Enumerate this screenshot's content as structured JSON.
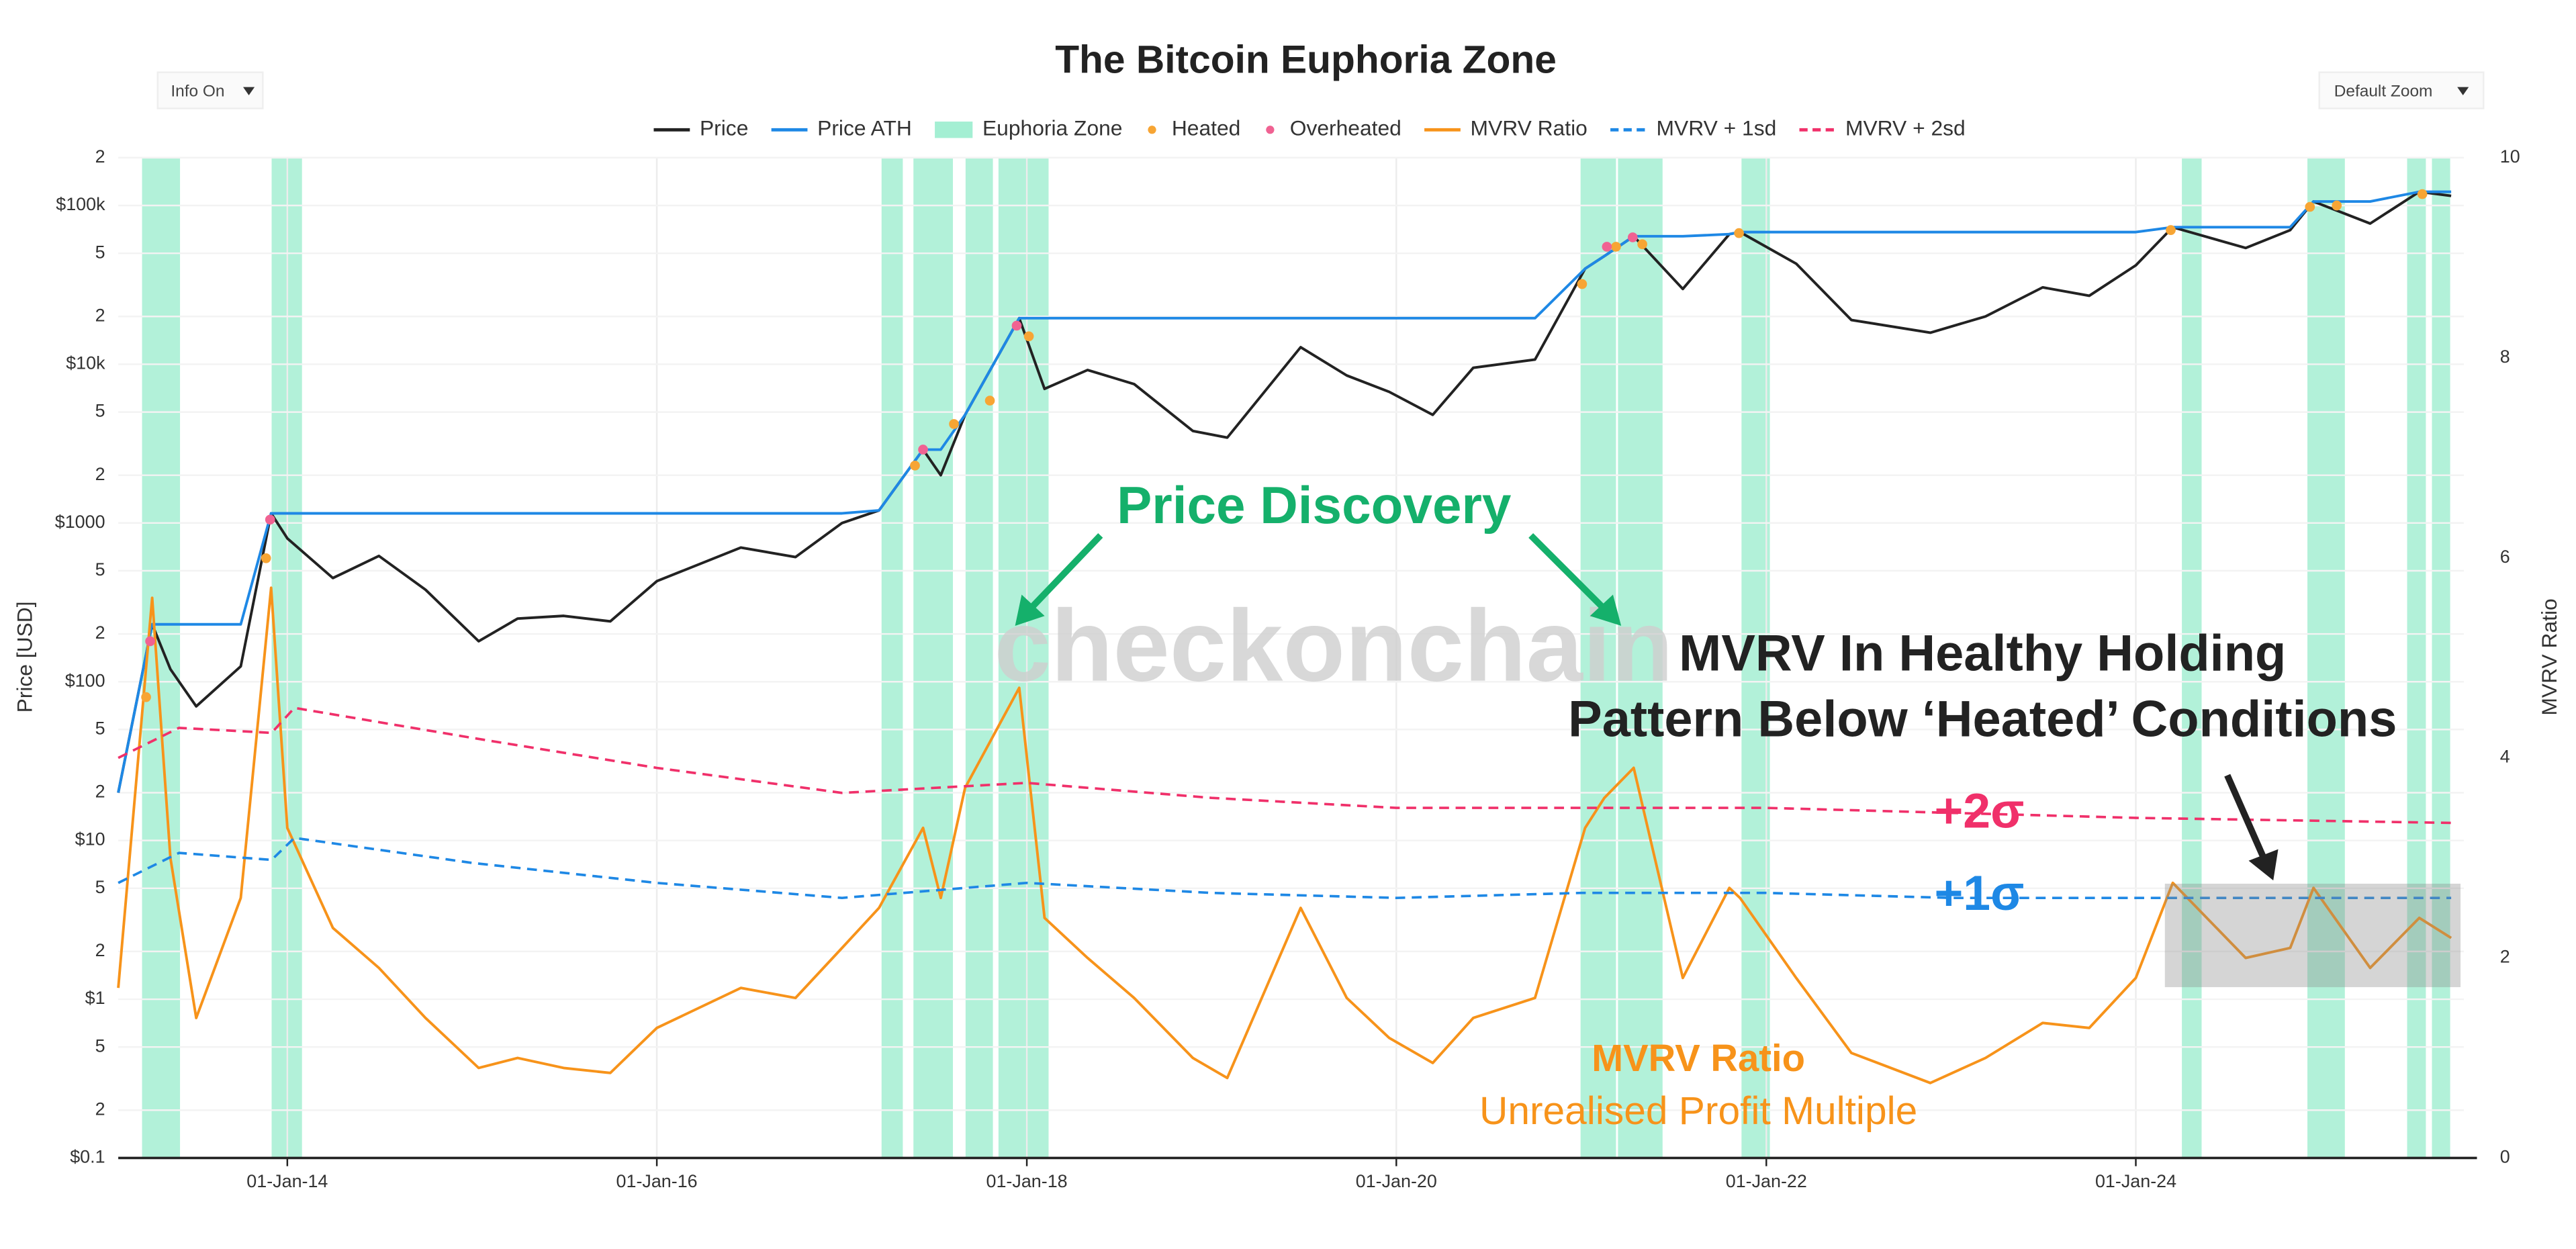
{
  "chart_data": {
    "type": "line",
    "title": "The Bitcoin Euphoria Zone",
    "controls": {
      "left": "Info On",
      "right": "Default Zoom"
    },
    "y_label": "Price [USD]",
    "y2_label": "MVRV Ratio",
    "legend_position": "top",
    "grid": true,
    "log_y": true,
    "xlim": [
      "2013-02-01",
      "2025-10-10"
    ],
    "xticks": [
      {
        "value": "2014-01-01",
        "label": "01-Jan-14"
      },
      {
        "value": "2016-01-01",
        "label": "01-Jan-16"
      },
      {
        "value": "2018-01-01",
        "label": "01-Jan-18"
      },
      {
        "value": "2020-01-01",
        "label": "01-Jan-20"
      },
      {
        "value": "2022-01-01",
        "label": "01-Jan-22"
      },
      {
        "value": "2024-01-01",
        "label": "01-Jan-24"
      }
    ],
    "ylim": [
      0.1,
      200000
    ],
    "yticks": [
      {
        "value": 0.1,
        "label": "$0.1"
      },
      {
        "value": 0.2,
        "label": "2"
      },
      {
        "value": 0.5,
        "label": "5"
      },
      {
        "value": 1,
        "label": "$1"
      },
      2,
      5,
      {
        "value": 10,
        "label": "$10"
      },
      {
        "value": 20,
        "label": "2"
      },
      {
        "value": 50,
        "label": "5"
      },
      {
        "value": 100,
        "label": "$100"
      },
      {
        "value": 200,
        "label": "2"
      },
      {
        "value": 500,
        "label": "5"
      },
      {
        "value": 1000,
        "label": "$1000"
      },
      {
        "value": 2000,
        "label": "2"
      },
      {
        "value": 5000,
        "label": "5"
      },
      {
        "value": 10000,
        "label": "$10k"
      },
      {
        "value": 20000,
        "label": "2"
      },
      {
        "value": 50000,
        "label": "5"
      },
      {
        "value": 100000,
        "label": "$100k"
      },
      {
        "value": 200000,
        "label": "2"
      }
    ],
    "y2lim": [
      0,
      10
    ],
    "y2ticks": [
      0,
      2,
      4,
      6,
      8,
      10
    ],
    "x": [
      "2013-02-01",
      "2013-04-09",
      "2013-05-15",
      "2013-07-05",
      "2013-10-01",
      "2013-11-30",
      "2014-01-01",
      "2014-04-01",
      "2014-07-01",
      "2014-10-01",
      "2015-01-14",
      "2015-04-01",
      "2015-07-01",
      "2015-10-01",
      "2016-01-01",
      "2016-06-15",
      "2016-10-01",
      "2017-01-01",
      "2017-03-15",
      "2017-06-10",
      "2017-07-15",
      "2017-09-01",
      "2017-12-17",
      "2018-02-05",
      "2018-05-01",
      "2018-08-01",
      "2018-11-25",
      "2019-02-01",
      "2019-06-26",
      "2019-09-25",
      "2019-12-18",
      "2020-03-13",
      "2020-06-01",
      "2020-10-01",
      "2021-01-08",
      "2021-02-15",
      "2021-04-14",
      "2021-07-20",
      "2021-10-20",
      "2021-11-10",
      "2022-03-01",
      "2022-06-18",
      "2022-11-21",
      "2023-03-10",
      "2023-07-01",
      "2023-10-01",
      "2024-01-01",
      "2024-03-14",
      "2024-08-05",
      "2024-11-01",
      "2024-12-17",
      "2025-04-08",
      "2025-07-14",
      "2025-09-15"
    ],
    "series": [
      {
        "name": "Price",
        "kind": "line",
        "color": "#222222",
        "values": [
          20,
          230,
          120,
          70,
          125,
          1150,
          800,
          450,
          620,
          380,
          180,
          250,
          260,
          240,
          430,
          700,
          610,
          1000,
          1200,
          2900,
          2000,
          4800,
          19500,
          7000,
          9200,
          7500,
          3800,
          3450,
          12800,
          8500,
          6700,
          4800,
          9500,
          10700,
          40000,
          48000,
          64000,
          29800,
          66000,
          68000,
          43000,
          19000,
          15800,
          20000,
          30500,
          27000,
          42000,
          73000,
          54000,
          70000,
          106000,
          77000,
          122000,
          115000
        ]
      },
      {
        "name": "Price ATH",
        "kind": "line",
        "color": "#1e88e5",
        "values": [
          20,
          230,
          230,
          230,
          230,
          1150,
          1150,
          1150,
          1150,
          1150,
          1150,
          1150,
          1150,
          1150,
          1150,
          1150,
          1150,
          1150,
          1200,
          2900,
          2900,
          4800,
          19500,
          19500,
          19500,
          19500,
          19500,
          19500,
          19500,
          19500,
          19500,
          19500,
          19500,
          19500,
          40000,
          48000,
          64000,
          64000,
          66000,
          68000,
          68000,
          68000,
          68000,
          68000,
          68000,
          68000,
          68000,
          73000,
          73000,
          73000,
          106000,
          106000,
          122000,
          122000
        ]
      },
      {
        "name": "Euphoria Zone",
        "kind": "zones",
        "color": "#7ee8c0",
        "zones": [
          [
            "2013-03-20",
            "2013-06-03"
          ],
          [
            "2013-12-01",
            "2014-01-30"
          ],
          [
            "2017-03-20",
            "2017-05-01"
          ],
          [
            "2017-05-22",
            "2017-08-08"
          ],
          [
            "2017-09-02",
            "2017-10-26"
          ],
          [
            "2017-11-06",
            "2018-02-13"
          ],
          [
            "2020-12-30",
            "2021-03-10"
          ],
          [
            "2021-03-14",
            "2021-06-10"
          ],
          [
            "2021-11-13",
            "2022-01-08"
          ],
          [
            "2024-04-01",
            "2024-05-10"
          ],
          [
            "2024-12-05",
            "2025-02-17"
          ],
          [
            "2025-06-20",
            "2025-07-27"
          ],
          [
            "2025-08-08",
            "2025-09-13"
          ]
        ]
      },
      {
        "name": "Heated",
        "kind": "scatter",
        "color": "#f7a534",
        "x": [
          "2013-03-28",
          "2013-11-20",
          "2017-05-25",
          "2017-08-10",
          "2017-10-20",
          "2018-01-05",
          "2021-01-02",
          "2021-03-10",
          "2021-05-01",
          "2021-11-08",
          "2024-03-10",
          "2024-12-10",
          "2025-02-01",
          "2025-07-20"
        ],
        "values": [
          80,
          600,
          2300,
          4200,
          5900,
          15000,
          32000,
          55000,
          57000,
          67000,
          70000,
          98000,
          100000,
          118000
        ]
      },
      {
        "name": "Overheated",
        "kind": "scatter",
        "color": "#f06292",
        "x": [
          "2013-04-05",
          "2013-11-28",
          "2017-06-10",
          "2017-12-12",
          "2021-02-20",
          "2021-04-12"
        ],
        "values": [
          180,
          1050,
          2900,
          17500,
          55000,
          63000
        ]
      },
      {
        "name": "MVRV Ratio",
        "kind": "line",
        "axis": "y2",
        "color": "#f7931a",
        "values": [
          1.7,
          5.6,
          3.0,
          1.4,
          2.6,
          5.7,
          3.3,
          2.3,
          1.9,
          1.4,
          0.9,
          1.0,
          0.9,
          0.85,
          1.3,
          1.7,
          1.6,
          2.1,
          2.5,
          3.3,
          2.6,
          3.7,
          4.7,
          2.4,
          2.0,
          1.6,
          1.0,
          0.8,
          2.5,
          1.6,
          1.2,
          0.95,
          1.4,
          1.6,
          3.3,
          3.6,
          3.9,
          1.8,
          2.7,
          2.6,
          1.8,
          1.05,
          0.75,
          1.0,
          1.35,
          1.3,
          1.8,
          2.75,
          2.0,
          2.1,
          2.7,
          1.9,
          2.4,
          2.2
        ]
      },
      {
        "name": "MVRV + 1sd",
        "kind": "line",
        "axis": "y2",
        "dash": true,
        "color": "#1e88e5",
        "x": [
          "2013-02-01",
          "2013-06-01",
          "2013-12-01",
          "2014-01-15",
          "2015-01-01",
          "2016-01-01",
          "2017-01-01",
          "2018-01-01",
          "2019-01-01",
          "2020-01-01",
          "2021-01-01",
          "2022-01-01",
          "2023-01-01",
          "2024-01-01",
          "2025-09-15"
        ],
        "values": [
          2.75,
          3.05,
          2.98,
          3.2,
          2.95,
          2.75,
          2.6,
          2.75,
          2.65,
          2.6,
          2.65,
          2.65,
          2.6,
          2.6,
          2.6
        ]
      },
      {
        "name": "MVRV + 2sd",
        "kind": "line",
        "axis": "y2",
        "dash": true,
        "color": "#f0306a",
        "x": [
          "2013-02-01",
          "2013-06-01",
          "2013-12-01",
          "2014-01-15",
          "2015-01-01",
          "2016-01-01",
          "2017-01-01",
          "2018-01-01",
          "2019-01-01",
          "2020-01-01",
          "2021-01-01",
          "2022-01-01",
          "2023-01-01",
          "2024-01-01",
          "2025-09-15"
        ],
        "values": [
          4.0,
          4.3,
          4.25,
          4.5,
          4.2,
          3.9,
          3.65,
          3.75,
          3.6,
          3.5,
          3.5,
          3.5,
          3.45,
          3.4,
          3.35
        ]
      }
    ],
    "annotations": {
      "watermark": "checkonchain",
      "price_discovery": "Price Discovery",
      "healthy_line1": "MVRV In Healthy Holding",
      "healthy_line2": "Pattern Below ‘Heated’ Conditions",
      "plus2": "+2σ",
      "plus1": "+1σ",
      "mvrv_title": "MVRV Ratio",
      "mvrv_subtitle": "Unrealised Profit Multiple"
    }
  }
}
